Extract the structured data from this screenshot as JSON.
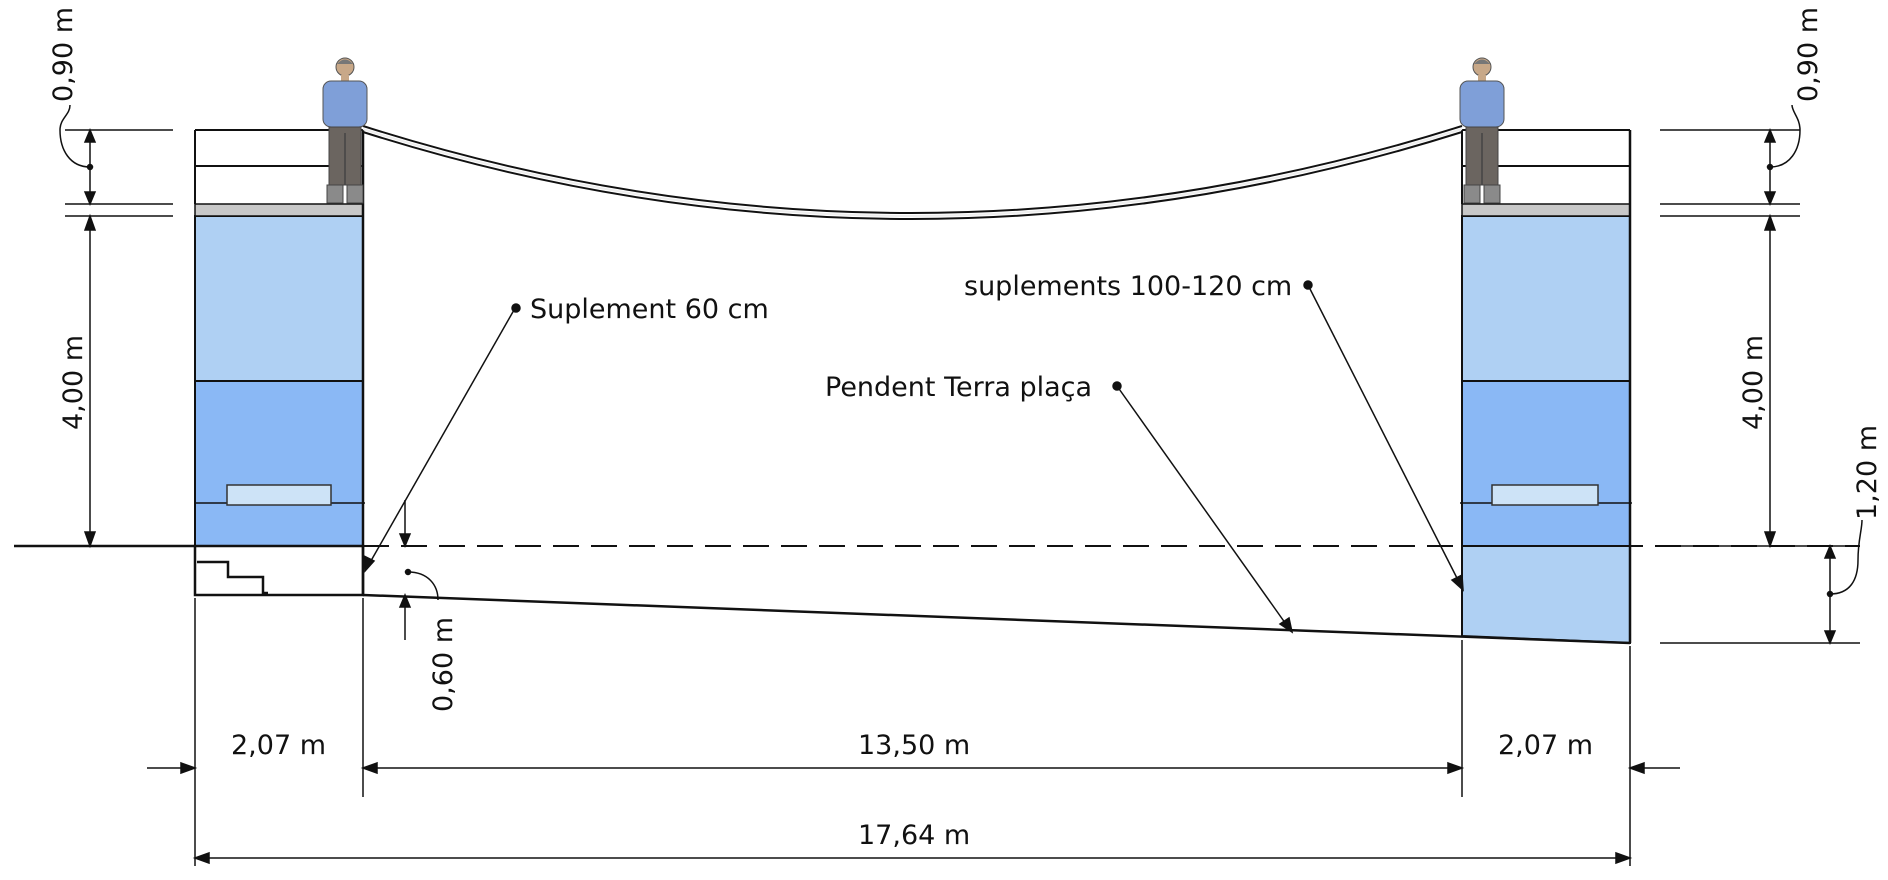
{
  "labels": {
    "suplement_60": "Suplement 60 cm",
    "suplements_100_120": "suplements 100-120 cm",
    "pendent_terra": "Pendent Terra plaça"
  },
  "dimensions": {
    "left_railing": "0,90 m",
    "right_railing": "0,90 m",
    "left_height": "4,00 m",
    "right_height": "4,00 m",
    "right_step": "1,20 m",
    "left_step": "0,60 m",
    "left_width": "2,07 m",
    "span": "13,50 m",
    "right_width": "2,07 m",
    "total": "17,64 m"
  },
  "colors": {
    "tower_light": "#afd0f3",
    "tower_mid": "#8ab8f5",
    "deck": "#c8c8c8",
    "window": "#cde3f7",
    "line": "#111111",
    "shirt": "#7f9fd8",
    "pants": "#6b6560"
  }
}
